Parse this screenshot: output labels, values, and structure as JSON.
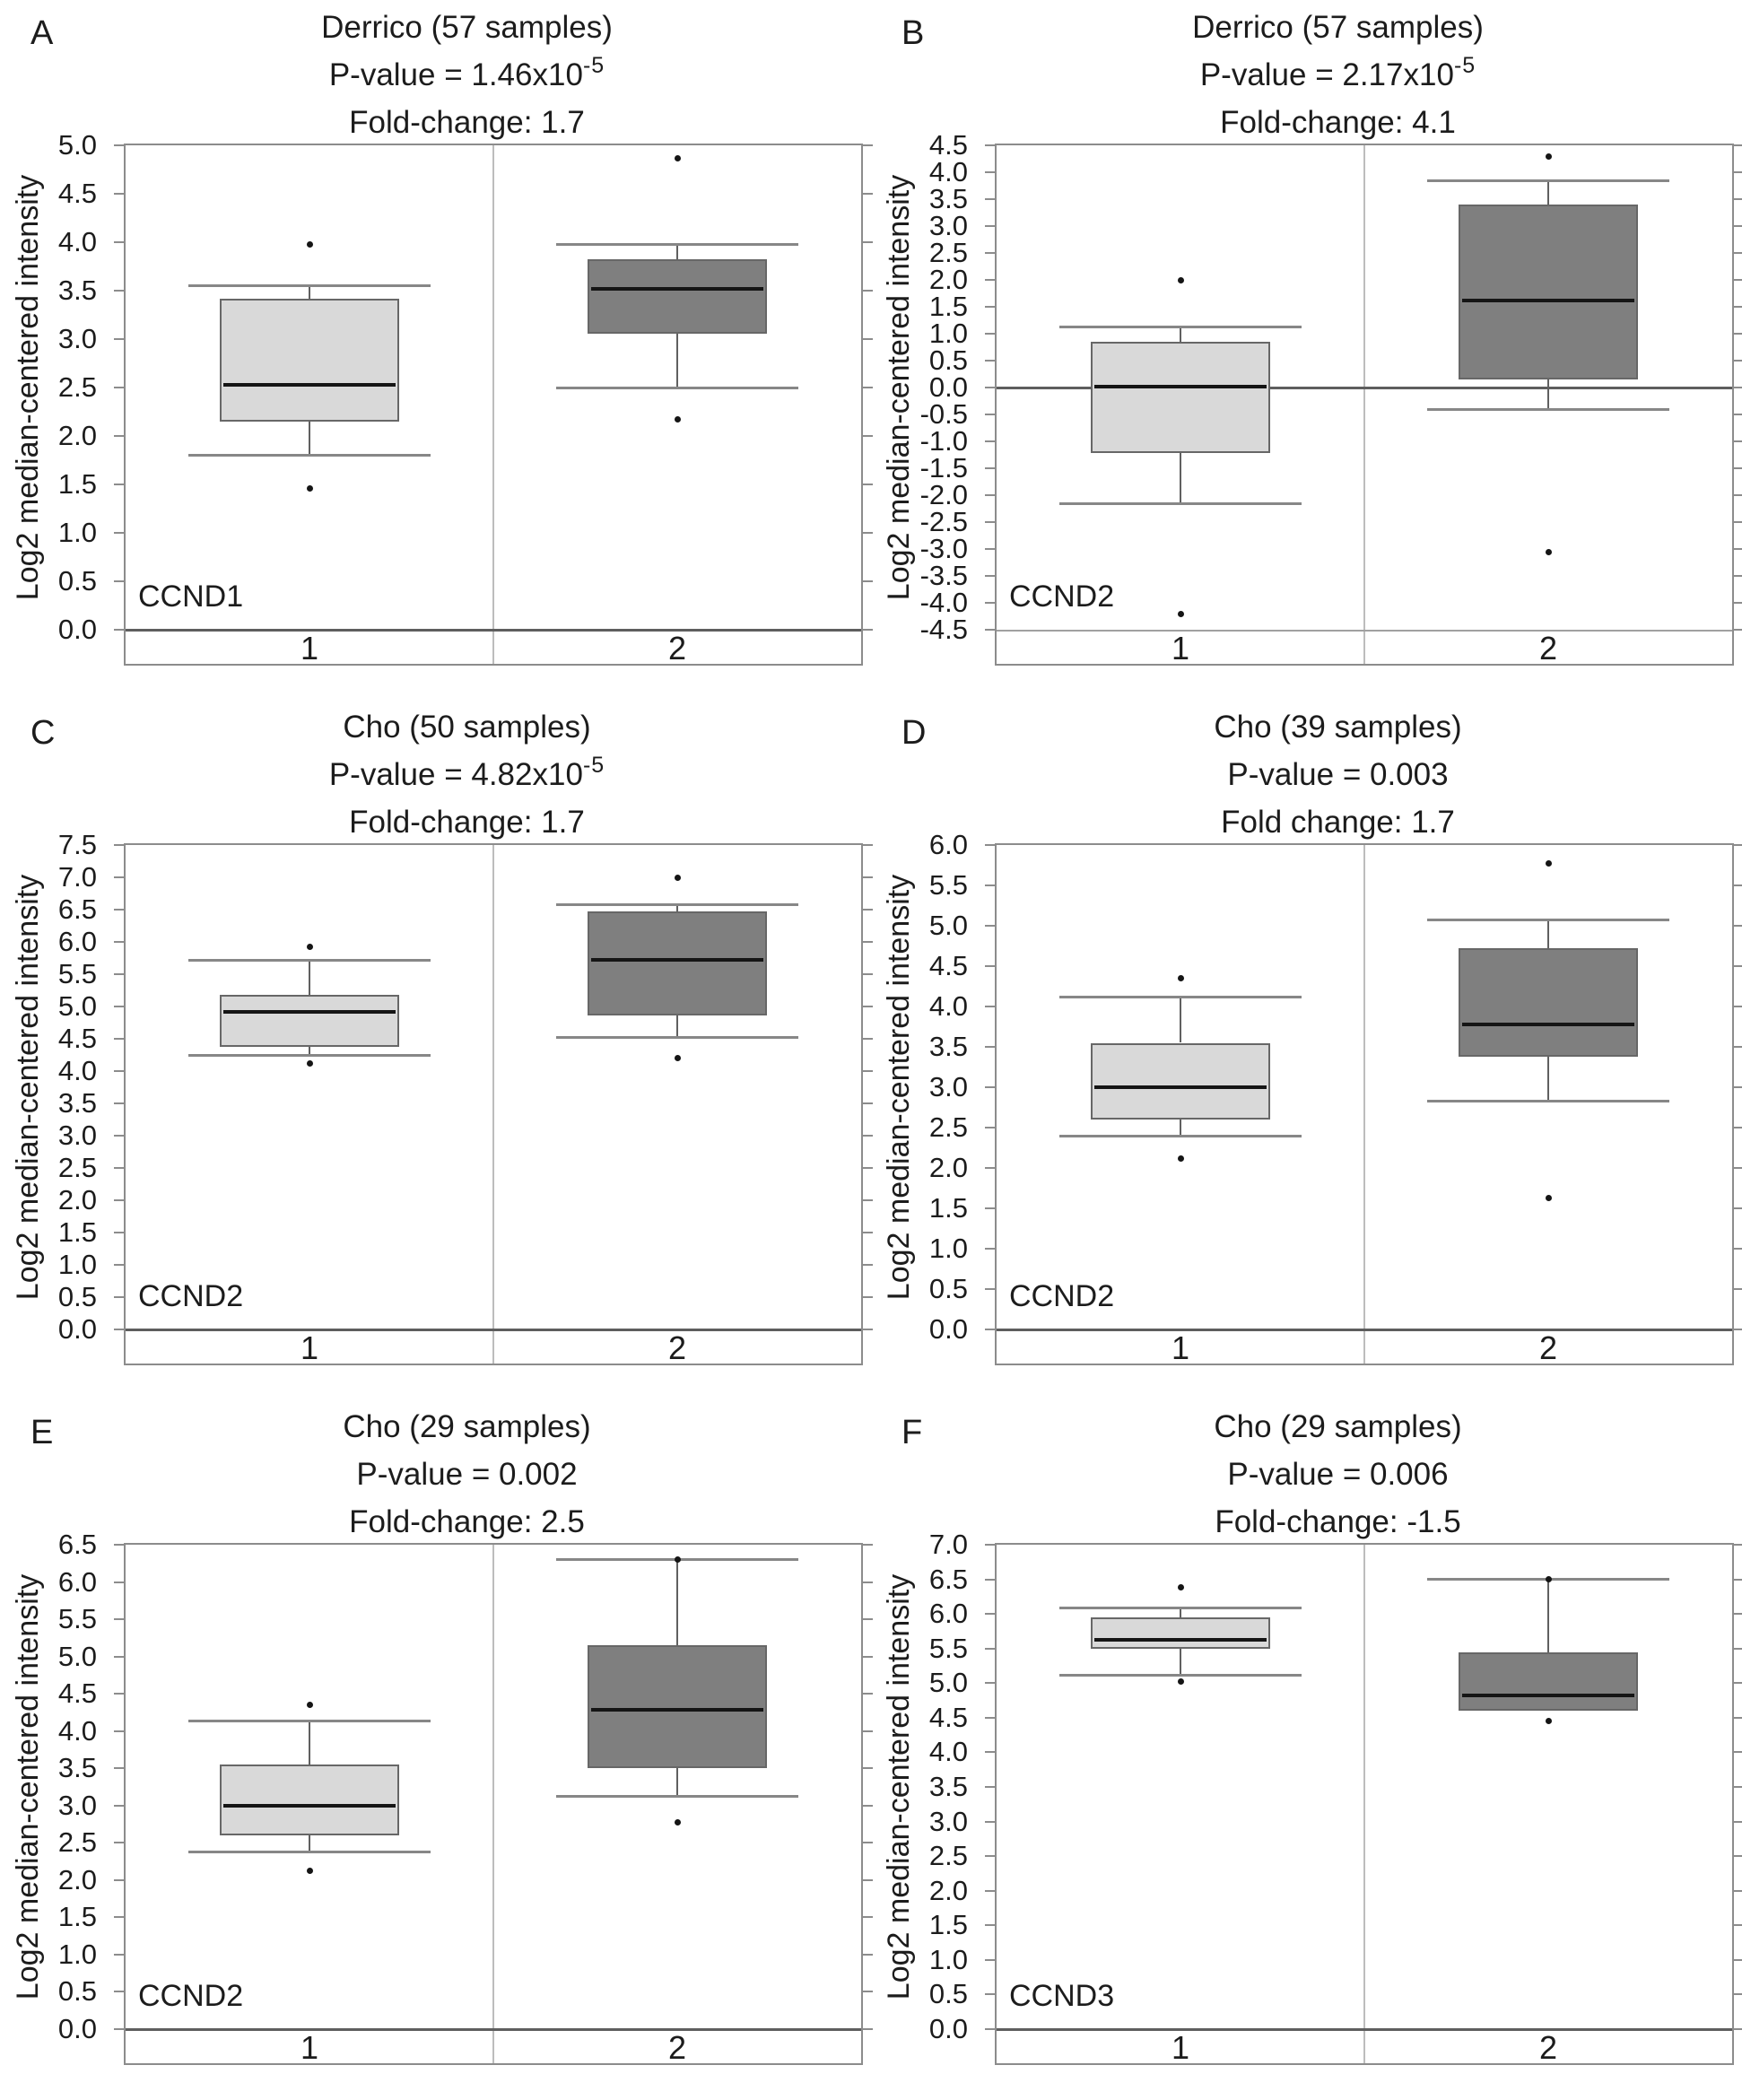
{
  "figure_title": "Box plots of Log2 median-centered intensity by dataset",
  "chart_data": [
    {
      "type": "boxplot",
      "panel": "A",
      "title": "Derrico (57 samples)",
      "pvalue": {
        "text": "P-value = 1.46x10",
        "exponent": "-5"
      },
      "fold_change": "Fold-change: 1.7",
      "gene": "CCND1",
      "ylabel": "Log2 median-centered intensity",
      "ylim": [
        0.0,
        5.0
      ],
      "ytick_step": 0.5,
      "grid": false,
      "categories": [
        "1",
        "2"
      ],
      "series": [
        {
          "name": "1",
          "box_color": "#d9d9d9",
          "whisker_high": 3.55,
          "q3": 3.42,
          "median": 2.53,
          "q1": 2.15,
          "whisker_low": 1.8,
          "outliers": [
            3.98,
            1.46
          ]
        },
        {
          "name": "2",
          "box_color": "#7f7f7f",
          "whisker_high": 3.98,
          "q3": 3.82,
          "median": 3.52,
          "q1": 3.06,
          "whisker_low": 2.5,
          "outliers": [
            4.87,
            2.17
          ]
        }
      ]
    },
    {
      "type": "boxplot",
      "panel": "B",
      "title": "Derrico (57 samples)",
      "pvalue": {
        "text": "P-value = 2.17x10",
        "exponent": "-5"
      },
      "fold_change": "Fold-change: 4.1",
      "gene": "CCND2",
      "ylabel": "Log2 median-centered intensity",
      "ylim": [
        -4.5,
        4.5
      ],
      "ytick_step": 0.5,
      "grid": false,
      "categories": [
        "1",
        "2"
      ],
      "series": [
        {
          "name": "1",
          "box_color": "#d9d9d9",
          "whisker_high": 1.12,
          "q3": 0.85,
          "median": 0.02,
          "q1": -1.22,
          "whisker_low": -2.15,
          "outliers": [
            2.0,
            -4.2
          ]
        },
        {
          "name": "2",
          "box_color": "#7f7f7f",
          "whisker_high": 3.85,
          "q3": 3.4,
          "median": 1.62,
          "q1": 0.15,
          "whisker_low": -0.4,
          "outliers": [
            4.3,
            -3.05
          ]
        }
      ]
    },
    {
      "type": "boxplot",
      "panel": "C",
      "title": "Cho (50 samples)",
      "pvalue": {
        "text": "P-value = 4.82x10",
        "exponent": "-5"
      },
      "fold_change": "Fold-change: 1.7",
      "gene": "CCND2",
      "ylabel": "Log2 median-centered intensity",
      "ylim": [
        0.0,
        7.5
      ],
      "ytick_step": 0.5,
      "grid": false,
      "categories": [
        "1",
        "2"
      ],
      "series": [
        {
          "name": "1",
          "box_color": "#d9d9d9",
          "whisker_high": 5.72,
          "q3": 5.18,
          "median": 4.91,
          "q1": 4.38,
          "whisker_low": 4.25,
          "outliers": [
            5.93,
            4.12
          ]
        },
        {
          "name": "2",
          "box_color": "#7f7f7f",
          "whisker_high": 6.58,
          "q3": 6.47,
          "median": 5.72,
          "q1": 4.86,
          "whisker_low": 4.52,
          "outliers": [
            7.0,
            4.2
          ]
        }
      ]
    },
    {
      "type": "boxplot",
      "panel": "D",
      "title": "Cho (39 samples)",
      "pvalue": {
        "text": "P-value = 0.003",
        "exponent": ""
      },
      "fold_change": "Fold change: 1.7",
      "gene": "CCND2",
      "ylabel": "Log2 median-centered intensity",
      "ylim": [
        0.0,
        6.0
      ],
      "ytick_step": 0.5,
      "grid": false,
      "categories": [
        "1",
        "2"
      ],
      "series": [
        {
          "name": "1",
          "box_color": "#d9d9d9",
          "whisker_high": 4.12,
          "q3": 3.55,
          "median": 3.0,
          "q1": 2.6,
          "whisker_low": 2.4,
          "outliers": [
            4.35,
            2.12
          ]
        },
        {
          "name": "2",
          "box_color": "#7f7f7f",
          "whisker_high": 5.07,
          "q3": 4.72,
          "median": 3.78,
          "q1": 3.38,
          "whisker_low": 2.83,
          "outliers": [
            5.77,
            1.63
          ]
        }
      ]
    },
    {
      "type": "boxplot",
      "panel": "E",
      "title": "Cho (29 samples)",
      "pvalue": {
        "text": "P-value = 0.002",
        "exponent": ""
      },
      "fold_change": "Fold-change: 2.5",
      "gene": "CCND2",
      "ylabel": "Log2 median-centered intensity",
      "ylim": [
        0.0,
        6.5
      ],
      "ytick_step": 0.5,
      "grid": false,
      "categories": [
        "1",
        "2"
      ],
      "series": [
        {
          "name": "1",
          "box_color": "#d9d9d9",
          "whisker_high": 4.13,
          "q3": 3.55,
          "median": 3.0,
          "q1": 2.6,
          "whisker_low": 2.38,
          "outliers": [
            4.35,
            2.13
          ]
        },
        {
          "name": "2",
          "box_color": "#7f7f7f",
          "whisker_high": 6.3,
          "q3": 5.15,
          "median": 4.28,
          "q1": 3.5,
          "whisker_low": 3.12,
          "outliers": [
            6.3,
            2.78
          ]
        }
      ]
    },
    {
      "type": "boxplot",
      "panel": "F",
      "title": "Cho (29 samples)",
      "pvalue": {
        "text": "P-value = 0.006",
        "exponent": ""
      },
      "fold_change": "Fold-change: -1.5",
      "gene": "CCND3",
      "ylabel": "Log2 median-centered intensity",
      "ylim": [
        0.0,
        7.0
      ],
      "ytick_step": 0.5,
      "grid": false,
      "categories": [
        "1",
        "2"
      ],
      "series": [
        {
          "name": "1",
          "box_color": "#d9d9d9",
          "whisker_high": 6.08,
          "q3": 5.95,
          "median": 5.63,
          "q1": 5.5,
          "whisker_low": 5.12,
          "outliers": [
            6.38,
            5.02
          ]
        },
        {
          "name": "2",
          "box_color": "#7f7f7f",
          "whisker_high": 6.5,
          "q3": 5.45,
          "median": 4.82,
          "q1": 4.6,
          "whisker_low": null,
          "outliers": [
            6.5,
            4.45
          ]
        }
      ]
    }
  ],
  "style": {
    "box_light": "#d9d9d9",
    "box_dark": "#7f7f7f",
    "frame_color": "#8c8c8c",
    "median_color": "#151515",
    "background": "#ffffff"
  }
}
